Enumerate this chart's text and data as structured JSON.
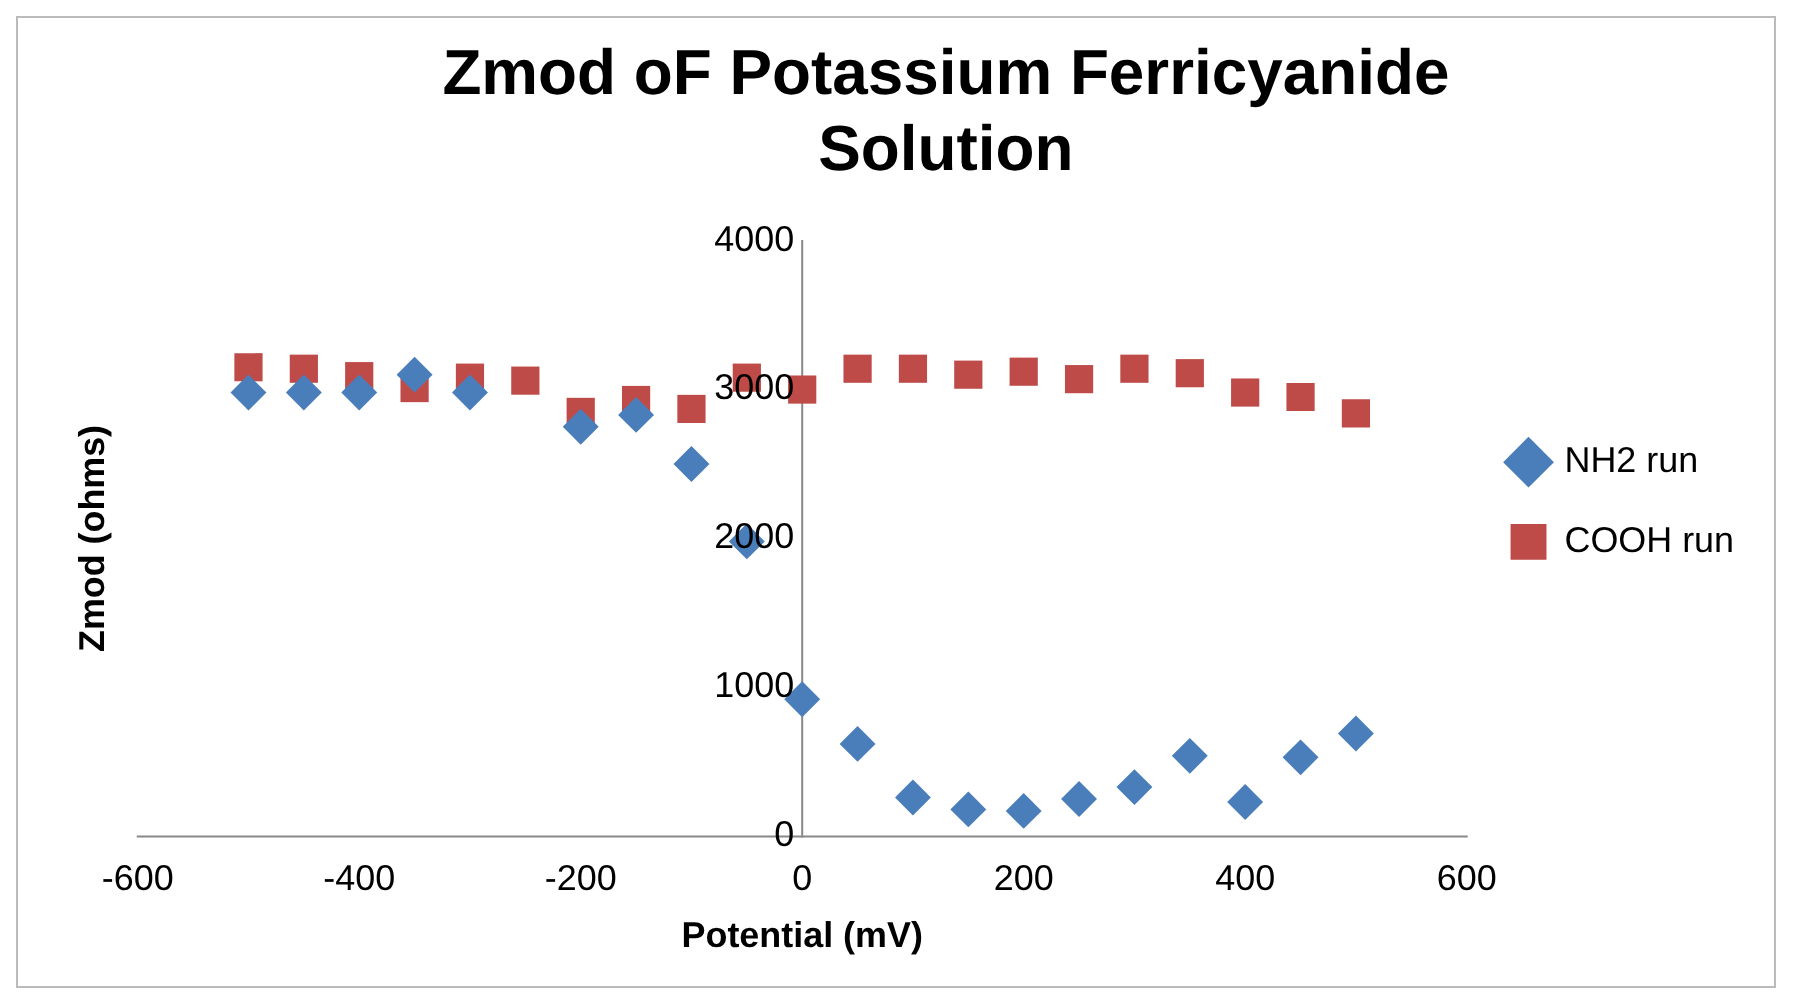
{
  "chart_data": {
    "type": "scatter",
    "title": "Zmod oF Potassium Ferricyanide Solution",
    "xlabel": "Potential (mV)",
    "ylabel": "Zmod (ohms)",
    "x": [
      -500,
      -450,
      -400,
      -350,
      -300,
      -250,
      -200,
      -150,
      -100,
      -50,
      0,
      50,
      100,
      150,
      200,
      250,
      300,
      350,
      400,
      450,
      500
    ],
    "series": [
      {
        "name": "NH2 run",
        "color": "#4a7ebb",
        "marker": "diamond",
        "values": [
          2980,
          2980,
          2980,
          3100,
          2980,
          null,
          2750,
          2830,
          2500,
          1980,
          920,
          620,
          260,
          180,
          170,
          250,
          330,
          540,
          230,
          530,
          690
        ]
      },
      {
        "name": "COOH run",
        "color": "#be4b48",
        "marker": "square",
        "values": [
          3150,
          3140,
          3090,
          3010,
          3080,
          3060,
          2850,
          2930,
          2870,
          3080,
          3000,
          3140,
          3140,
          3100,
          3120,
          3070,
          3140,
          3110,
          2980,
          2950,
          2840
        ]
      }
    ],
    "xlim": [
      -600,
      600
    ],
    "xticks": [
      -600,
      -400,
      -200,
      0,
      200,
      400,
      600
    ],
    "ylim": [
      0,
      4000
    ],
    "yticks": [
      0,
      1000,
      2000,
      3000,
      4000
    ],
    "grid": false,
    "legend": "right"
  }
}
